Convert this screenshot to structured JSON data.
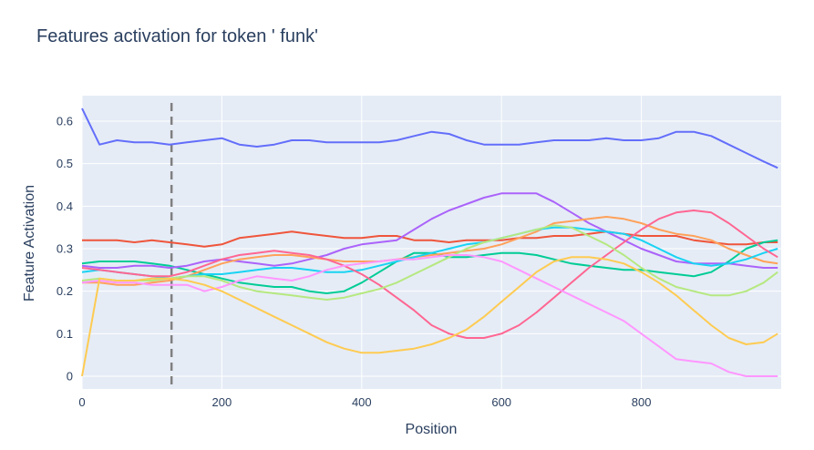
{
  "chart_data": {
    "type": "line",
    "title": "Features activation for token ' funk'",
    "xlabel": "Position",
    "ylabel": "Feature Activation",
    "xlim": [
      0,
      1000
    ],
    "ylim": [
      -0.03,
      0.66
    ],
    "x_ticks": [
      0,
      200,
      400,
      600,
      800
    ],
    "x_tick_labels": [
      "0",
      "200",
      "400",
      "600",
      "800"
    ],
    "y_ticks": [
      0,
      0.1,
      0.2,
      0.3,
      0.4,
      0.5,
      0.6
    ],
    "y_tick_labels": [
      "0",
      "0.1",
      "0.2",
      "0.3",
      "0.4",
      "0.5",
      "0.6"
    ],
    "grid": true,
    "legend": "none",
    "plot_background": "#e5ecf6",
    "vline": {
      "x": 128,
      "style": "dashed",
      "color": "#808080"
    },
    "x": [
      0,
      25,
      50,
      75,
      100,
      125,
      150,
      175,
      200,
      225,
      250,
      275,
      300,
      325,
      350,
      375,
      400,
      425,
      450,
      475,
      500,
      525,
      550,
      575,
      600,
      625,
      650,
      675,
      700,
      725,
      750,
      775,
      800,
      825,
      850,
      875,
      900,
      925,
      950,
      975,
      1000
    ],
    "series": [
      {
        "color": "#636efa",
        "values": [
          0.63,
          0.545,
          0.555,
          0.55,
          0.55,
          0.545,
          0.55,
          0.555,
          0.56,
          0.545,
          0.54,
          0.545,
          0.555,
          0.555,
          0.55,
          0.55,
          0.55,
          0.55,
          0.555,
          0.565,
          0.575,
          0.57,
          0.555,
          0.545,
          0.545,
          0.545,
          0.55,
          0.555,
          0.555,
          0.555,
          0.56,
          0.555,
          0.555,
          0.56,
          0.575,
          0.575,
          0.565,
          0.545,
          0.525,
          0.505,
          0.49
        ]
      },
      {
        "color": "#ef553b",
        "values": [
          0.32,
          0.32,
          0.32,
          0.315,
          0.32,
          0.315,
          0.31,
          0.305,
          0.31,
          0.325,
          0.33,
          0.335,
          0.34,
          0.335,
          0.33,
          0.325,
          0.325,
          0.33,
          0.33,
          0.32,
          0.32,
          0.315,
          0.32,
          0.32,
          0.32,
          0.325,
          0.325,
          0.33,
          0.33,
          0.335,
          0.34,
          0.335,
          0.33,
          0.33,
          0.33,
          0.32,
          0.315,
          0.31,
          0.31,
          0.315,
          0.315
        ]
      },
      {
        "color": "#00cc96",
        "values": [
          0.265,
          0.27,
          0.27,
          0.27,
          0.265,
          0.26,
          0.25,
          0.24,
          0.23,
          0.22,
          0.215,
          0.21,
          0.21,
          0.2,
          0.195,
          0.2,
          0.22,
          0.245,
          0.27,
          0.29,
          0.29,
          0.28,
          0.28,
          0.285,
          0.29,
          0.29,
          0.285,
          0.275,
          0.265,
          0.26,
          0.255,
          0.25,
          0.25,
          0.245,
          0.24,
          0.235,
          0.245,
          0.27,
          0.3,
          0.315,
          0.32
        ]
      },
      {
        "color": "#ab63fa",
        "values": [
          0.26,
          0.255,
          0.255,
          0.26,
          0.26,
          0.255,
          0.26,
          0.27,
          0.275,
          0.27,
          0.265,
          0.26,
          0.265,
          0.275,
          0.285,
          0.3,
          0.31,
          0.315,
          0.32,
          0.345,
          0.37,
          0.39,
          0.405,
          0.42,
          0.43,
          0.43,
          0.43,
          0.41,
          0.385,
          0.36,
          0.34,
          0.32,
          0.3,
          0.285,
          0.27,
          0.265,
          0.265,
          0.265,
          0.26,
          0.255,
          0.255
        ]
      },
      {
        "color": "#ffa15a",
        "values": [
          0.22,
          0.22,
          0.215,
          0.215,
          0.22,
          0.225,
          0.235,
          0.25,
          0.265,
          0.275,
          0.28,
          0.285,
          0.285,
          0.28,
          0.275,
          0.27,
          0.27,
          0.27,
          0.275,
          0.28,
          0.285,
          0.29,
          0.295,
          0.3,
          0.31,
          0.325,
          0.34,
          0.36,
          0.365,
          0.37,
          0.375,
          0.37,
          0.36,
          0.345,
          0.335,
          0.33,
          0.32,
          0.3,
          0.285,
          0.27,
          0.265
        ]
      },
      {
        "color": "#19d3f3",
        "values": [
          0.245,
          0.25,
          0.245,
          0.24,
          0.235,
          0.23,
          0.235,
          0.24,
          0.24,
          0.245,
          0.25,
          0.255,
          0.255,
          0.25,
          0.245,
          0.245,
          0.25,
          0.26,
          0.27,
          0.28,
          0.29,
          0.3,
          0.31,
          0.315,
          0.325,
          0.335,
          0.345,
          0.35,
          0.35,
          0.345,
          0.34,
          0.335,
          0.32,
          0.3,
          0.28,
          0.265,
          0.26,
          0.265,
          0.275,
          0.29,
          0.3
        ]
      },
      {
        "color": "#ff6692",
        "values": [
          0.255,
          0.25,
          0.245,
          0.24,
          0.235,
          0.235,
          0.245,
          0.26,
          0.275,
          0.285,
          0.29,
          0.295,
          0.29,
          0.285,
          0.275,
          0.26,
          0.24,
          0.215,
          0.185,
          0.155,
          0.12,
          0.1,
          0.09,
          0.09,
          0.1,
          0.12,
          0.15,
          0.185,
          0.22,
          0.255,
          0.285,
          0.315,
          0.345,
          0.37,
          0.385,
          0.39,
          0.385,
          0.36,
          0.33,
          0.3,
          0.28
        ]
      },
      {
        "color": "#b6e880",
        "values": [
          0.225,
          0.23,
          0.225,
          0.225,
          0.225,
          0.23,
          0.235,
          0.235,
          0.225,
          0.21,
          0.2,
          0.195,
          0.19,
          0.185,
          0.18,
          0.185,
          0.195,
          0.205,
          0.22,
          0.24,
          0.26,
          0.28,
          0.3,
          0.315,
          0.325,
          0.335,
          0.345,
          0.355,
          0.35,
          0.33,
          0.31,
          0.285,
          0.255,
          0.23,
          0.21,
          0.2,
          0.19,
          0.19,
          0.2,
          0.22,
          0.245
        ]
      },
      {
        "color": "#ff97ff",
        "values": [
          0.22,
          0.225,
          0.22,
          0.22,
          0.215,
          0.215,
          0.215,
          0.2,
          0.21,
          0.225,
          0.235,
          0.23,
          0.225,
          0.235,
          0.25,
          0.26,
          0.265,
          0.27,
          0.275,
          0.275,
          0.28,
          0.285,
          0.285,
          0.28,
          0.27,
          0.25,
          0.23,
          0.21,
          0.19,
          0.17,
          0.15,
          0.13,
          0.1,
          0.07,
          0.04,
          0.035,
          0.03,
          0.01,
          0.0,
          0.0,
          0.0
        ]
      },
      {
        "color": "#fecb52",
        "values": [
          0.0,
          0.23,
          0.225,
          0.225,
          0.23,
          0.23,
          0.225,
          0.215,
          0.2,
          0.18,
          0.16,
          0.14,
          0.12,
          0.1,
          0.08,
          0.065,
          0.055,
          0.055,
          0.06,
          0.065,
          0.075,
          0.09,
          0.11,
          0.14,
          0.175,
          0.21,
          0.245,
          0.27,
          0.28,
          0.28,
          0.275,
          0.265,
          0.245,
          0.22,
          0.19,
          0.155,
          0.12,
          0.09,
          0.075,
          0.08,
          0.1
        ]
      }
    ]
  }
}
